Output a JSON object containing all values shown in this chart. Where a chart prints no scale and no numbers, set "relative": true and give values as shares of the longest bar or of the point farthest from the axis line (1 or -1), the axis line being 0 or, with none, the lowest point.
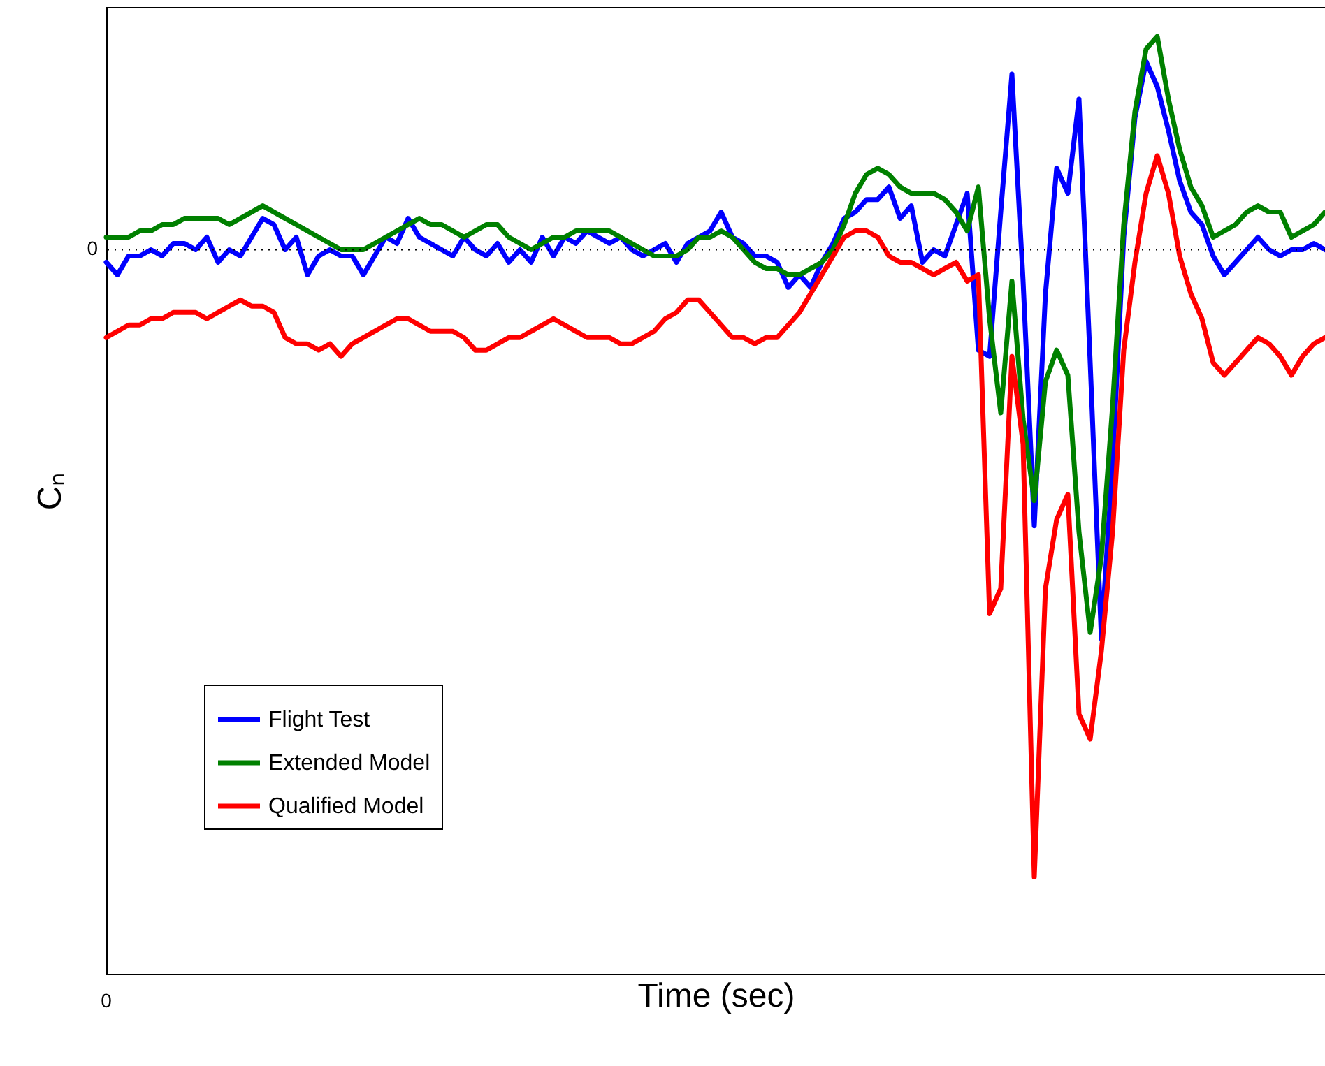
{
  "chart_data": {
    "type": "line",
    "xlabel": "Time (sec)",
    "ylabel": "Cₙ",
    "relative": true,
    "legend": "bottom left",
    "line_style": "solid",
    "categories": [
      null,
      null,
      null,
      null,
      null,
      null,
      null,
      null,
      null,
      null,
      null,
      null,
      null,
      null,
      null,
      null,
      null,
      null,
      null,
      null,
      null,
      null,
      null,
      null,
      null,
      null,
      null,
      null,
      null,
      null,
      null,
      null,
      null,
      null,
      null,
      null,
      null,
      null,
      null,
      null,
      null,
      null,
      null,
      null,
      null,
      null,
      null,
      null,
      null,
      null,
      null,
      null,
      null,
      null,
      null,
      null,
      null,
      null,
      null,
      null,
      null,
      null,
      null,
      null,
      null,
      null,
      null,
      null,
      null,
      null,
      null,
      null,
      null,
      null,
      null,
      null,
      null,
      null,
      null,
      null,
      null,
      null,
      null,
      null,
      null,
      null,
      null,
      null,
      null,
      null,
      null,
      null,
      null,
      null,
      null,
      null,
      null,
      null,
      null,
      null,
      null,
      null,
      null,
      null,
      null,
      null,
      null,
      null,
      null,
      null
    ],
    "series": [
      {
        "name": "Flight Test",
        "color": "#0000ff",
        "values": [
          -0.02,
          -0.04,
          -0.01,
          -0.01,
          0.0,
          -0.01,
          0.01,
          0.01,
          0.0,
          0.02,
          -0.02,
          0.0,
          -0.01,
          0.02,
          0.05,
          0.04,
          0.0,
          0.02,
          -0.04,
          -0.01,
          0.0,
          -0.01,
          -0.01,
          -0.04,
          -0.01,
          0.02,
          0.01,
          0.05,
          0.02,
          0.01,
          0.0,
          -0.01,
          0.02,
          0.0,
          -0.01,
          0.01,
          -0.02,
          0.0,
          -0.02,
          0.02,
          -0.01,
          0.02,
          0.01,
          0.03,
          0.02,
          0.01,
          0.02,
          0.0,
          -0.01,
          0.0,
          0.01,
          -0.02,
          0.01,
          0.02,
          0.03,
          0.06,
          0.02,
          0.01,
          -0.01,
          -0.01,
          -0.02,
          -0.06,
          -0.04,
          -0.06,
          -0.02,
          0.01,
          0.05,
          0.06,
          0.08,
          0.08,
          0.1,
          0.05,
          0.07,
          -0.02,
          0.0,
          -0.01,
          0.04,
          0.09,
          -0.16,
          -0.17,
          0.06,
          0.28,
          -0.05,
          -0.44,
          -0.07,
          0.13,
          0.09,
          0.24,
          -0.18,
          -0.62,
          -0.34,
          0.02,
          0.21,
          0.3,
          0.26,
          0.19,
          0.11,
          0.06,
          0.04,
          -0.01,
          -0.04,
          -0.02,
          0.0,
          0.02,
          0.0,
          -0.01,
          0.0,
          0.0,
          0.01,
          0.0
        ]
      },
      {
        "name": "Extended Model",
        "color": "#008000",
        "values": [
          0.02,
          0.02,
          0.02,
          0.03,
          0.03,
          0.04,
          0.04,
          0.05,
          0.05,
          0.05,
          0.05,
          0.04,
          0.05,
          0.06,
          0.07,
          0.06,
          0.05,
          0.04,
          0.03,
          0.02,
          0.01,
          0.0,
          0.0,
          0.0,
          0.01,
          0.02,
          0.03,
          0.04,
          0.05,
          0.04,
          0.04,
          0.03,
          0.02,
          0.03,
          0.04,
          0.04,
          0.02,
          0.01,
          0.0,
          0.01,
          0.02,
          0.02,
          0.03,
          0.03,
          0.03,
          0.03,
          0.02,
          0.01,
          0.0,
          -0.01,
          -0.01,
          -0.01,
          0.0,
          0.02,
          0.02,
          0.03,
          0.02,
          0.0,
          -0.02,
          -0.03,
          -0.03,
          -0.04,
          -0.04,
          -0.03,
          -0.02,
          0.0,
          0.04,
          0.09,
          0.12,
          0.13,
          0.12,
          0.1,
          0.09,
          0.09,
          0.09,
          0.08,
          0.06,
          0.03,
          0.1,
          -0.11,
          -0.26,
          -0.05,
          -0.27,
          -0.4,
          -0.21,
          -0.16,
          -0.2,
          -0.45,
          -0.61,
          -0.49,
          -0.25,
          0.04,
          0.22,
          0.32,
          0.34,
          0.24,
          0.16,
          0.1,
          0.07,
          0.02,
          0.03,
          0.04,
          0.06,
          0.07,
          0.06,
          0.06,
          0.02,
          0.03,
          0.04,
          0.06
        ]
      },
      {
        "name": "Qualified Model",
        "color": "#ff0000",
        "values": [
          -0.14,
          -0.13,
          -0.12,
          -0.12,
          -0.11,
          -0.11,
          -0.1,
          -0.1,
          -0.1,
          -0.11,
          -0.1,
          -0.09,
          -0.08,
          -0.09,
          -0.09,
          -0.1,
          -0.14,
          -0.15,
          -0.15,
          -0.16,
          -0.15,
          -0.17,
          -0.15,
          -0.14,
          -0.13,
          -0.12,
          -0.11,
          -0.11,
          -0.12,
          -0.13,
          -0.13,
          -0.13,
          -0.14,
          -0.16,
          -0.16,
          -0.15,
          -0.14,
          -0.14,
          -0.13,
          -0.12,
          -0.11,
          -0.12,
          -0.13,
          -0.14,
          -0.14,
          -0.14,
          -0.15,
          -0.15,
          -0.14,
          -0.13,
          -0.11,
          -0.1,
          -0.08,
          -0.08,
          -0.1,
          -0.12,
          -0.14,
          -0.14,
          -0.15,
          -0.14,
          -0.14,
          -0.12,
          -0.1,
          -0.07,
          -0.04,
          -0.01,
          0.02,
          0.03,
          0.03,
          0.02,
          -0.01,
          -0.02,
          -0.02,
          -0.03,
          -0.04,
          -0.03,
          -0.02,
          -0.05,
          -0.04,
          -0.58,
          -0.54,
          -0.17,
          -0.31,
          -1,
          -0.54,
          -0.43,
          -0.39,
          -0.74,
          -0.78,
          -0.64,
          -0.45,
          -0.16,
          -0.02,
          0.09,
          0.15,
          0.09,
          -0.01,
          -0.07,
          -0.11,
          -0.18,
          -0.2,
          -0.18,
          -0.16,
          -0.14,
          -0.15,
          -0.17,
          -0.2,
          -0.17,
          -0.15,
          -0.14
        ]
      }
    ],
    "ref_lines": [
      {
        "axis": "y",
        "value": 0,
        "label": "0",
        "line_style": "dotted"
      }
    ],
    "annotations": [
      "0"
    ]
  }
}
